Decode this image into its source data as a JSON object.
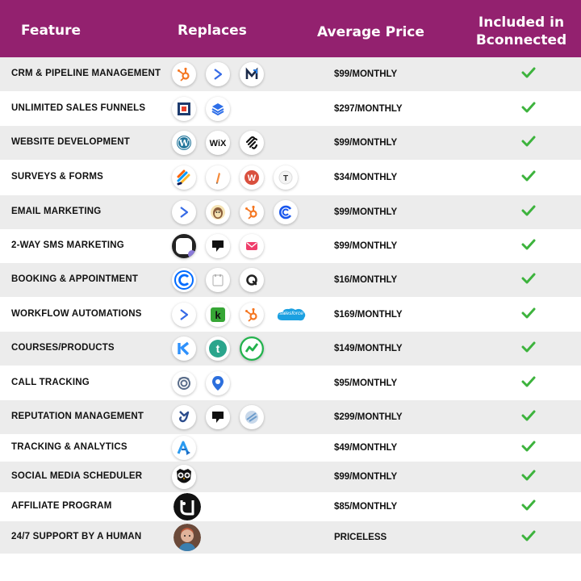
{
  "header": {
    "feature": "Feature",
    "replaces": "Replaces",
    "price": "Average Price",
    "included": [
      "Included in",
      "Bconnected"
    ]
  },
  "colors": {
    "header_bg": "#93216f",
    "check": "#3db33d",
    "row_alt": "#ececec"
  },
  "rows": [
    {
      "feature": "CRM & PIPELINE MANAGEMENT",
      "price": "$99/MONTHLY",
      "icons": [
        "hubspot-icon",
        "activecampaign-icon",
        "mailerlite-m-icon"
      ],
      "included": true
    },
    {
      "feature": "UNLIMITED SALES FUNNELS",
      "price": "$297/MONTHLY",
      "icons": [
        "clickfunnels-icon",
        "layers-icon"
      ],
      "included": true
    },
    {
      "feature": "WEBSITE DEVELOPMENT",
      "price": "$99/MONTHLY",
      "icons": [
        "wordpress-icon",
        "wix-icon",
        "squarespace-icon"
      ],
      "included": true
    },
    {
      "feature": "SURVEYS & FORMS",
      "price": "$34/MONTHLY",
      "icons": [
        "jotform-icon",
        "zapier-form-icon",
        "wufoo-icon",
        "typeform-icon"
      ],
      "included": true
    },
    {
      "feature": "EMAIL MARKETING",
      "price": "$99/MONTHLY",
      "icons": [
        "activecampaign-icon",
        "mailchimp-icon",
        "hubspot-icon",
        "constant-contact-icon"
      ],
      "included": true
    },
    {
      "feature": "2-WAY SMS MARKETING",
      "price": "$99/MONTHLY",
      "icons": [
        "sms-app-icon",
        "podium-icon",
        "text-message-icon"
      ],
      "included": true
    },
    {
      "feature": "BOOKING & APPOINTMENT",
      "price": "$16/MONTHLY",
      "icons": [
        "calendly-icon",
        "calendar-icon",
        "acuity-icon"
      ],
      "included": true
    },
    {
      "feature": "WORKFLOW AUTOMATIONS",
      "price": "$169/MONTHLY",
      "icons": [
        "activecampaign-icon",
        "keap-icon",
        "hubspot-icon",
        "salesforce-icon"
      ],
      "included": true
    },
    {
      "feature": "COURSES/PRODUCTS",
      "price": "$149/MONTHLY",
      "icons": [
        "kajabi-icon",
        "teachable-icon",
        "thinkific-icon"
      ],
      "included": true
    },
    {
      "feature": "CALL TRACKING",
      "price": "$95/MONTHLY",
      "icons": [
        "callrail-icon",
        "location-pin-icon"
      ],
      "included": true
    },
    {
      "feature": "REPUTATION MANAGEMENT",
      "price": "$299/MONTHLY",
      "icons": [
        "birdeye-icon",
        "podium-icon",
        "yext-icon"
      ],
      "included": true
    },
    {
      "feature": "TRACKING & ANALYTICS",
      "price": "$49/MONTHLY",
      "icons": [
        "analytics-icon"
      ],
      "included": true
    },
    {
      "feature": "SOCIAL MEDIA SCHEDULER",
      "price": "$99/MONTHLY",
      "icons": [
        "hootsuite-owl-icon"
      ],
      "included": true
    },
    {
      "feature": "AFFILIATE PROGRAM",
      "price": "$85/MONTHLY",
      "icons": [
        "affiliate-app-icon"
      ],
      "included": true
    },
    {
      "feature": "24/7 SUPPORT BY A HUMAN",
      "price": "PRICELESS",
      "icons": [
        "support-person-avatar"
      ],
      "included": true
    }
  ],
  "salesforce_label": "salesforce"
}
